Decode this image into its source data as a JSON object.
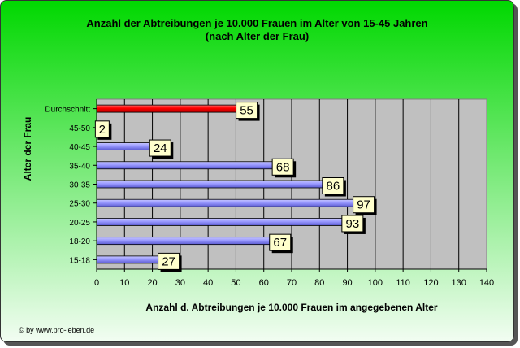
{
  "chart_data": {
    "type": "bar",
    "orientation": "horizontal",
    "title": "Anzahl der Abtreibungen je 10.000 Frauen im Alter von 15-45 Jahren",
    "subtitle": "(nach Alter der Frau)",
    "xlabel": "Anzahl d. Abtreibungen je 10.000 Frauen im angegebenen Alter",
    "ylabel": "Alter der Frau",
    "xlim": [
      0,
      140
    ],
    "xticks": [
      0,
      10,
      20,
      30,
      40,
      50,
      60,
      70,
      80,
      90,
      100,
      110,
      120,
      130,
      140
    ],
    "grid": true,
    "legend": "none",
    "categories": [
      "Durchschnitt",
      "45-50",
      "40-45",
      "35-40",
      "30-35",
      "25-30",
      "20-25",
      "18-20",
      "15-18"
    ],
    "values": [
      55,
      2,
      24,
      68,
      86,
      97,
      93,
      67,
      27
    ],
    "colors": {
      "bar": "#9999ff",
      "highlight_bar": "#ff0000",
      "plot_background": "#c0c0c0",
      "label_box": "#ffffcc",
      "frame_top": "#00d800"
    }
  },
  "footer": {
    "copyright": "© by www.pro-leben.de"
  }
}
